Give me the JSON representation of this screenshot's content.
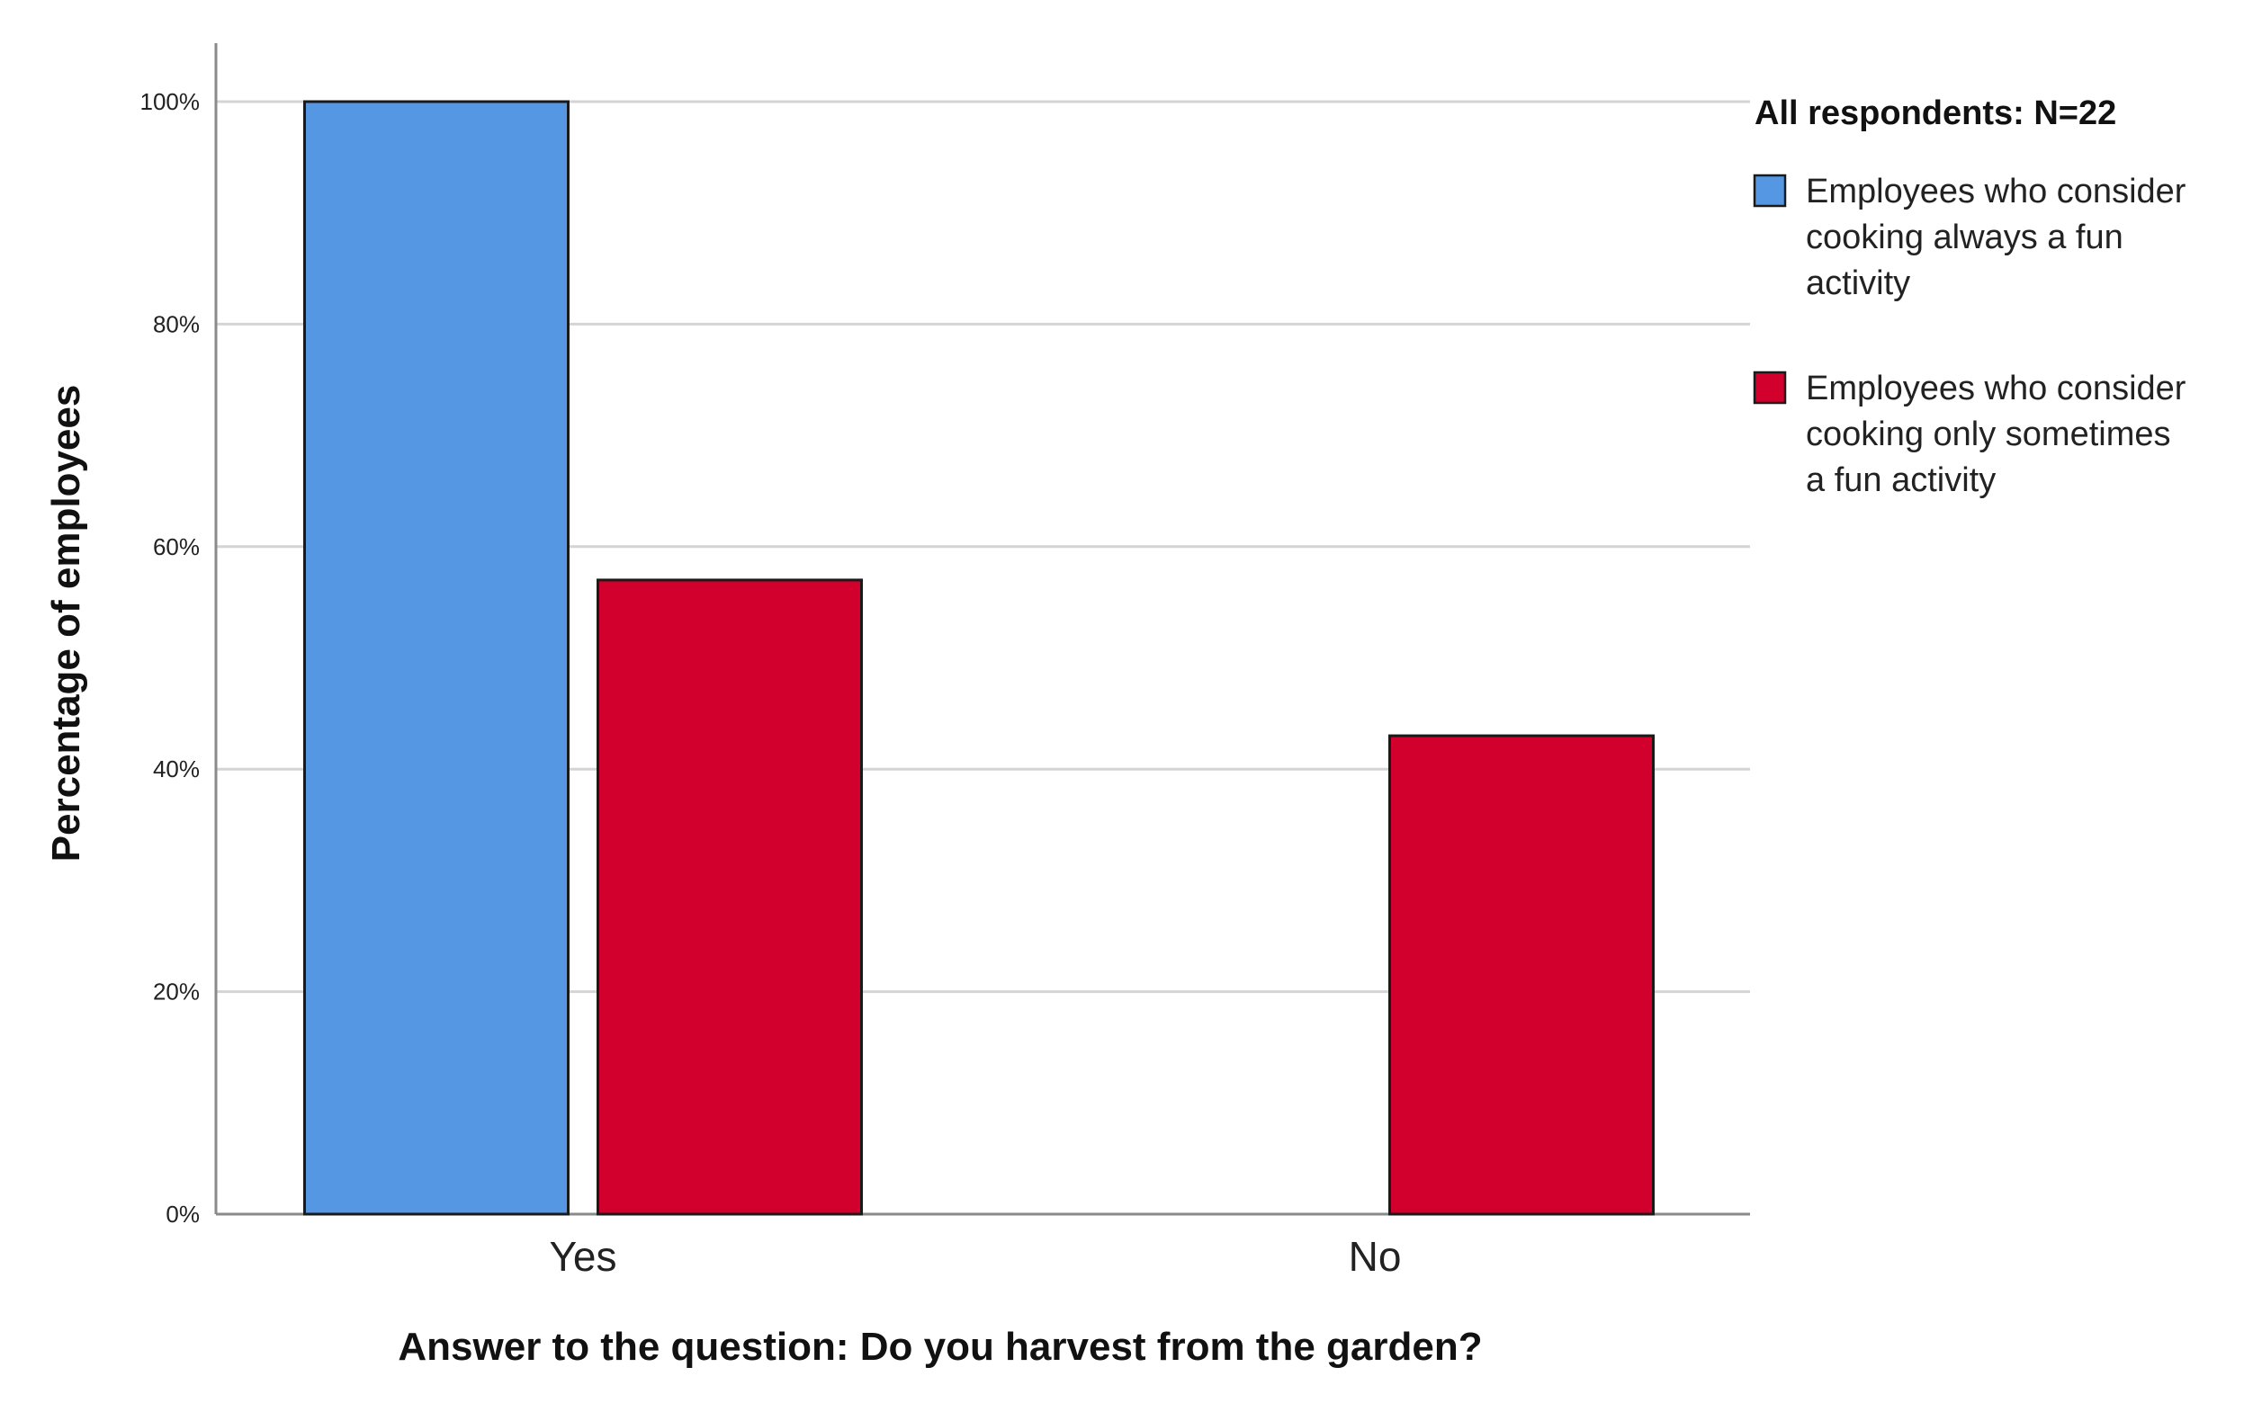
{
  "chart_data": {
    "type": "bar",
    "title": "",
    "xlabel": "Answer to the question: Do you harvest from the garden?",
    "ylabel": "Percentage of employees",
    "ylim": [
      0,
      100
    ],
    "yticks": [
      "0%",
      "20%",
      "40%",
      "60%",
      "80%",
      "100%"
    ],
    "categories": [
      "Yes",
      "No"
    ],
    "series": [
      {
        "name": "Employees who consider cooking always a fun activity",
        "color": "#5597e2",
        "values": [
          100,
          0
        ]
      },
      {
        "name": "Employees who consider cooking only sometimes a fun activity",
        "color": "#d2002c",
        "values": [
          57,
          43
        ]
      }
    ],
    "grid": true,
    "legend": {
      "placement": "right",
      "title": "All respondents: N=22",
      "entries": [
        {
          "lines": [
            "Employees who consider",
            "cooking always a fun",
            "activity"
          ],
          "color": "#5597e2"
        },
        {
          "lines": [
            "Employees who consider",
            "cooking only sometimes",
            "a fun activity"
          ],
          "color": "#d2002c"
        }
      ]
    }
  }
}
